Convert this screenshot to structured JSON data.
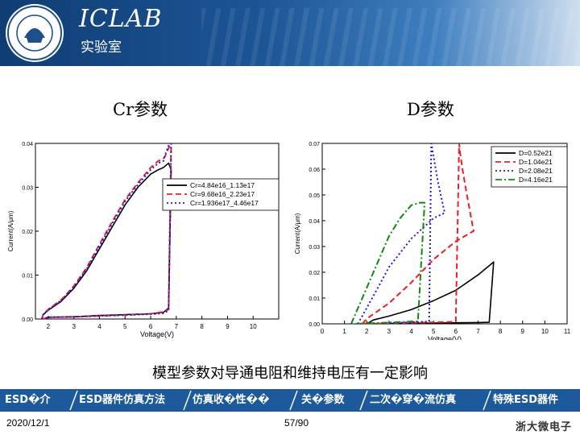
{
  "header": {
    "brand": "ICLAB",
    "lab_name": "实验室",
    "logo_text": "浙江大学 1897 ZHEJIANG UNIVERSITY"
  },
  "titles": {
    "left": "Cr参数",
    "right": "D参数"
  },
  "caption": "模型参数对导通电阻和维持电压有一定影响",
  "nav": {
    "items": [
      "ESD�介",
      "ESD器件仿真方法",
      "仿真收�性��",
      "关�参数",
      "二次�穿�流仿真",
      "特殊ESD器件"
    ]
  },
  "footer": {
    "date": "2020/12/1",
    "page": "57/90",
    "brand": "浙大微电子"
  },
  "colors": {
    "black": "#000000",
    "red": "#e8202a",
    "blue": "#1a1ae0",
    "green": "#118811"
  },
  "chart_data": [
    {
      "type": "line",
      "title": "",
      "xlabel": "Voltage(V)",
      "ylabel": "Current(A/μm)",
      "xlim": [
        1.5,
        11
      ],
      "ylim": [
        0,
        0.04
      ],
      "xticks": [
        2,
        3,
        4,
        5,
        6,
        7,
        8,
        9,
        10
      ],
      "yticks": [
        0.0,
        0.01,
        0.02,
        0.03,
        0.04
      ],
      "ytick_labels": [
        "0.00",
        "0.01",
        "0.02",
        "0.03",
        "0.04"
      ],
      "legend_position": "top-right",
      "series": [
        {
          "name": "Cr=4.84e16_1.13e17",
          "style": "solid",
          "color": "#000000",
          "x": [
            1.75,
            1.8,
            2.0,
            2.5,
            3.0,
            3.5,
            4.0,
            4.5,
            5.0,
            5.5,
            6.0,
            6.3,
            6.5,
            6.6,
            6.7,
            6.8,
            6.7,
            6.5,
            6.0,
            5.0,
            4.0,
            3.0,
            2.0,
            1.8
          ],
          "y": [
            0.0,
            0.001,
            0.002,
            0.004,
            0.007,
            0.011,
            0.016,
            0.021,
            0.026,
            0.03,
            0.033,
            0.034,
            0.0345,
            0.035,
            0.0355,
            0.034,
            0.0025,
            0.0015,
            0.0012,
            0.001,
            0.0008,
            0.0005,
            0.0004,
            0.0
          ]
        },
        {
          "name": "Cr=9.68e16_2.23e17",
          "style": "dashed",
          "color": "#e8202a",
          "x": [
            1.75,
            1.8,
            2.0,
            2.5,
            3.0,
            3.5,
            4.0,
            4.5,
            5.0,
            5.5,
            6.0,
            6.3,
            6.5,
            6.6,
            6.7,
            6.8,
            6.7,
            6.5,
            6.0,
            5.0,
            4.0,
            3.0,
            2.0,
            1.8
          ],
          "y": [
            0.0,
            0.001,
            0.0022,
            0.0043,
            0.0075,
            0.0117,
            0.017,
            0.0222,
            0.0272,
            0.031,
            0.0345,
            0.036,
            0.0365,
            0.0375,
            0.039,
            0.0395,
            0.0022,
            0.0016,
            0.0012,
            0.0009,
            0.0007,
            0.0005,
            0.0004,
            0.0
          ]
        },
        {
          "name": "Cr=1.936e17_4.46e17",
          "style": "dotted",
          "color": "#1a1ae0",
          "x": [
            1.75,
            1.8,
            2.0,
            2.5,
            3.0,
            3.5,
            4.0,
            4.5,
            5.0,
            5.5,
            6.0,
            6.3,
            6.5,
            6.6,
            6.7,
            6.8,
            6.7,
            6.5,
            6.0,
            5.0,
            4.0,
            3.0,
            2.0,
            1.8
          ],
          "y": [
            0.0,
            0.001,
            0.0021,
            0.0042,
            0.0073,
            0.0114,
            0.0166,
            0.0218,
            0.0268,
            0.0306,
            0.034,
            0.0355,
            0.036,
            0.038,
            0.0395,
            0.04,
            0.0019,
            0.0013,
            0.0011,
            0.0009,
            0.0007,
            0.0005,
            0.0004,
            0.0
          ]
        }
      ]
    },
    {
      "type": "line",
      "title": "",
      "xlabel": "Voltage(V)",
      "ylabel": "Current(A/μm)",
      "xlim": [
        0,
        11
      ],
      "ylim": [
        0,
        0.07
      ],
      "xticks": [
        0,
        1,
        2,
        3,
        4,
        5,
        6,
        7,
        8,
        9,
        10,
        11
      ],
      "yticks": [
        0.0,
        0.01,
        0.02,
        0.03,
        0.04,
        0.05,
        0.06,
        0.07
      ],
      "ytick_labels": [
        "0.00",
        "0.01",
        "0.02",
        "0.03",
        "0.04",
        "0.05",
        "0.06",
        "0.07"
      ],
      "legend_position": "top-right",
      "series": [
        {
          "name": "D=0.52e21",
          "style": "solid",
          "color": "#000000",
          "x": [
            2.0,
            2.3,
            3.0,
            4.0,
            5.0,
            6.0,
            7.0,
            7.7,
            7.5,
            7.0,
            6.0,
            5.0,
            4.0,
            3.0,
            2.0
          ],
          "y": [
            0.0,
            0.0015,
            0.003,
            0.0055,
            0.009,
            0.013,
            0.019,
            0.024,
            0.0006,
            0.0005,
            0.0004,
            0.0003,
            0.0002,
            0.0001,
            0.0
          ]
        },
        {
          "name": "D=1.04e21",
          "style": "dashed",
          "color": "#e8202a",
          "x": [
            1.8,
            2.0,
            3.0,
            4.0,
            5.0,
            6.0,
            6.8,
            6.5,
            6.3,
            6.2,
            6.15,
            6.0,
            5.0,
            4.0,
            3.0,
            2.0
          ],
          "y": [
            0.0,
            0.002,
            0.008,
            0.016,
            0.025,
            0.032,
            0.036,
            0.05,
            0.06,
            0.066,
            0.07,
            0.0008,
            0.0006,
            0.0004,
            0.0002,
            0.0
          ]
        },
        {
          "name": "D=2.08e21",
          "style": "dotted",
          "color": "#1a1ae0",
          "x": [
            1.6,
            1.8,
            2.5,
            3.0,
            4.0,
            5.0,
            5.5,
            5.2,
            5.0,
            4.9,
            4.8,
            4.0,
            3.0,
            2.0
          ],
          "y": [
            0.0,
            0.003,
            0.014,
            0.022,
            0.033,
            0.041,
            0.043,
            0.055,
            0.065,
            0.07,
            0.0009,
            0.0006,
            0.0003,
            0.0
          ]
        },
        {
          "name": "D=4.16e21",
          "style": "dashdot",
          "color": "#118811",
          "x": [
            1.3,
            1.5,
            2.0,
            2.5,
            3.0,
            3.5,
            4.0,
            4.4,
            4.6,
            4.3,
            4.0,
            3.0,
            2.0,
            1.5
          ],
          "y": [
            0.0,
            0.004,
            0.014,
            0.024,
            0.034,
            0.041,
            0.046,
            0.047,
            0.047,
            0.001,
            0.0009,
            0.0005,
            0.0002,
            0.0
          ]
        }
      ]
    }
  ]
}
